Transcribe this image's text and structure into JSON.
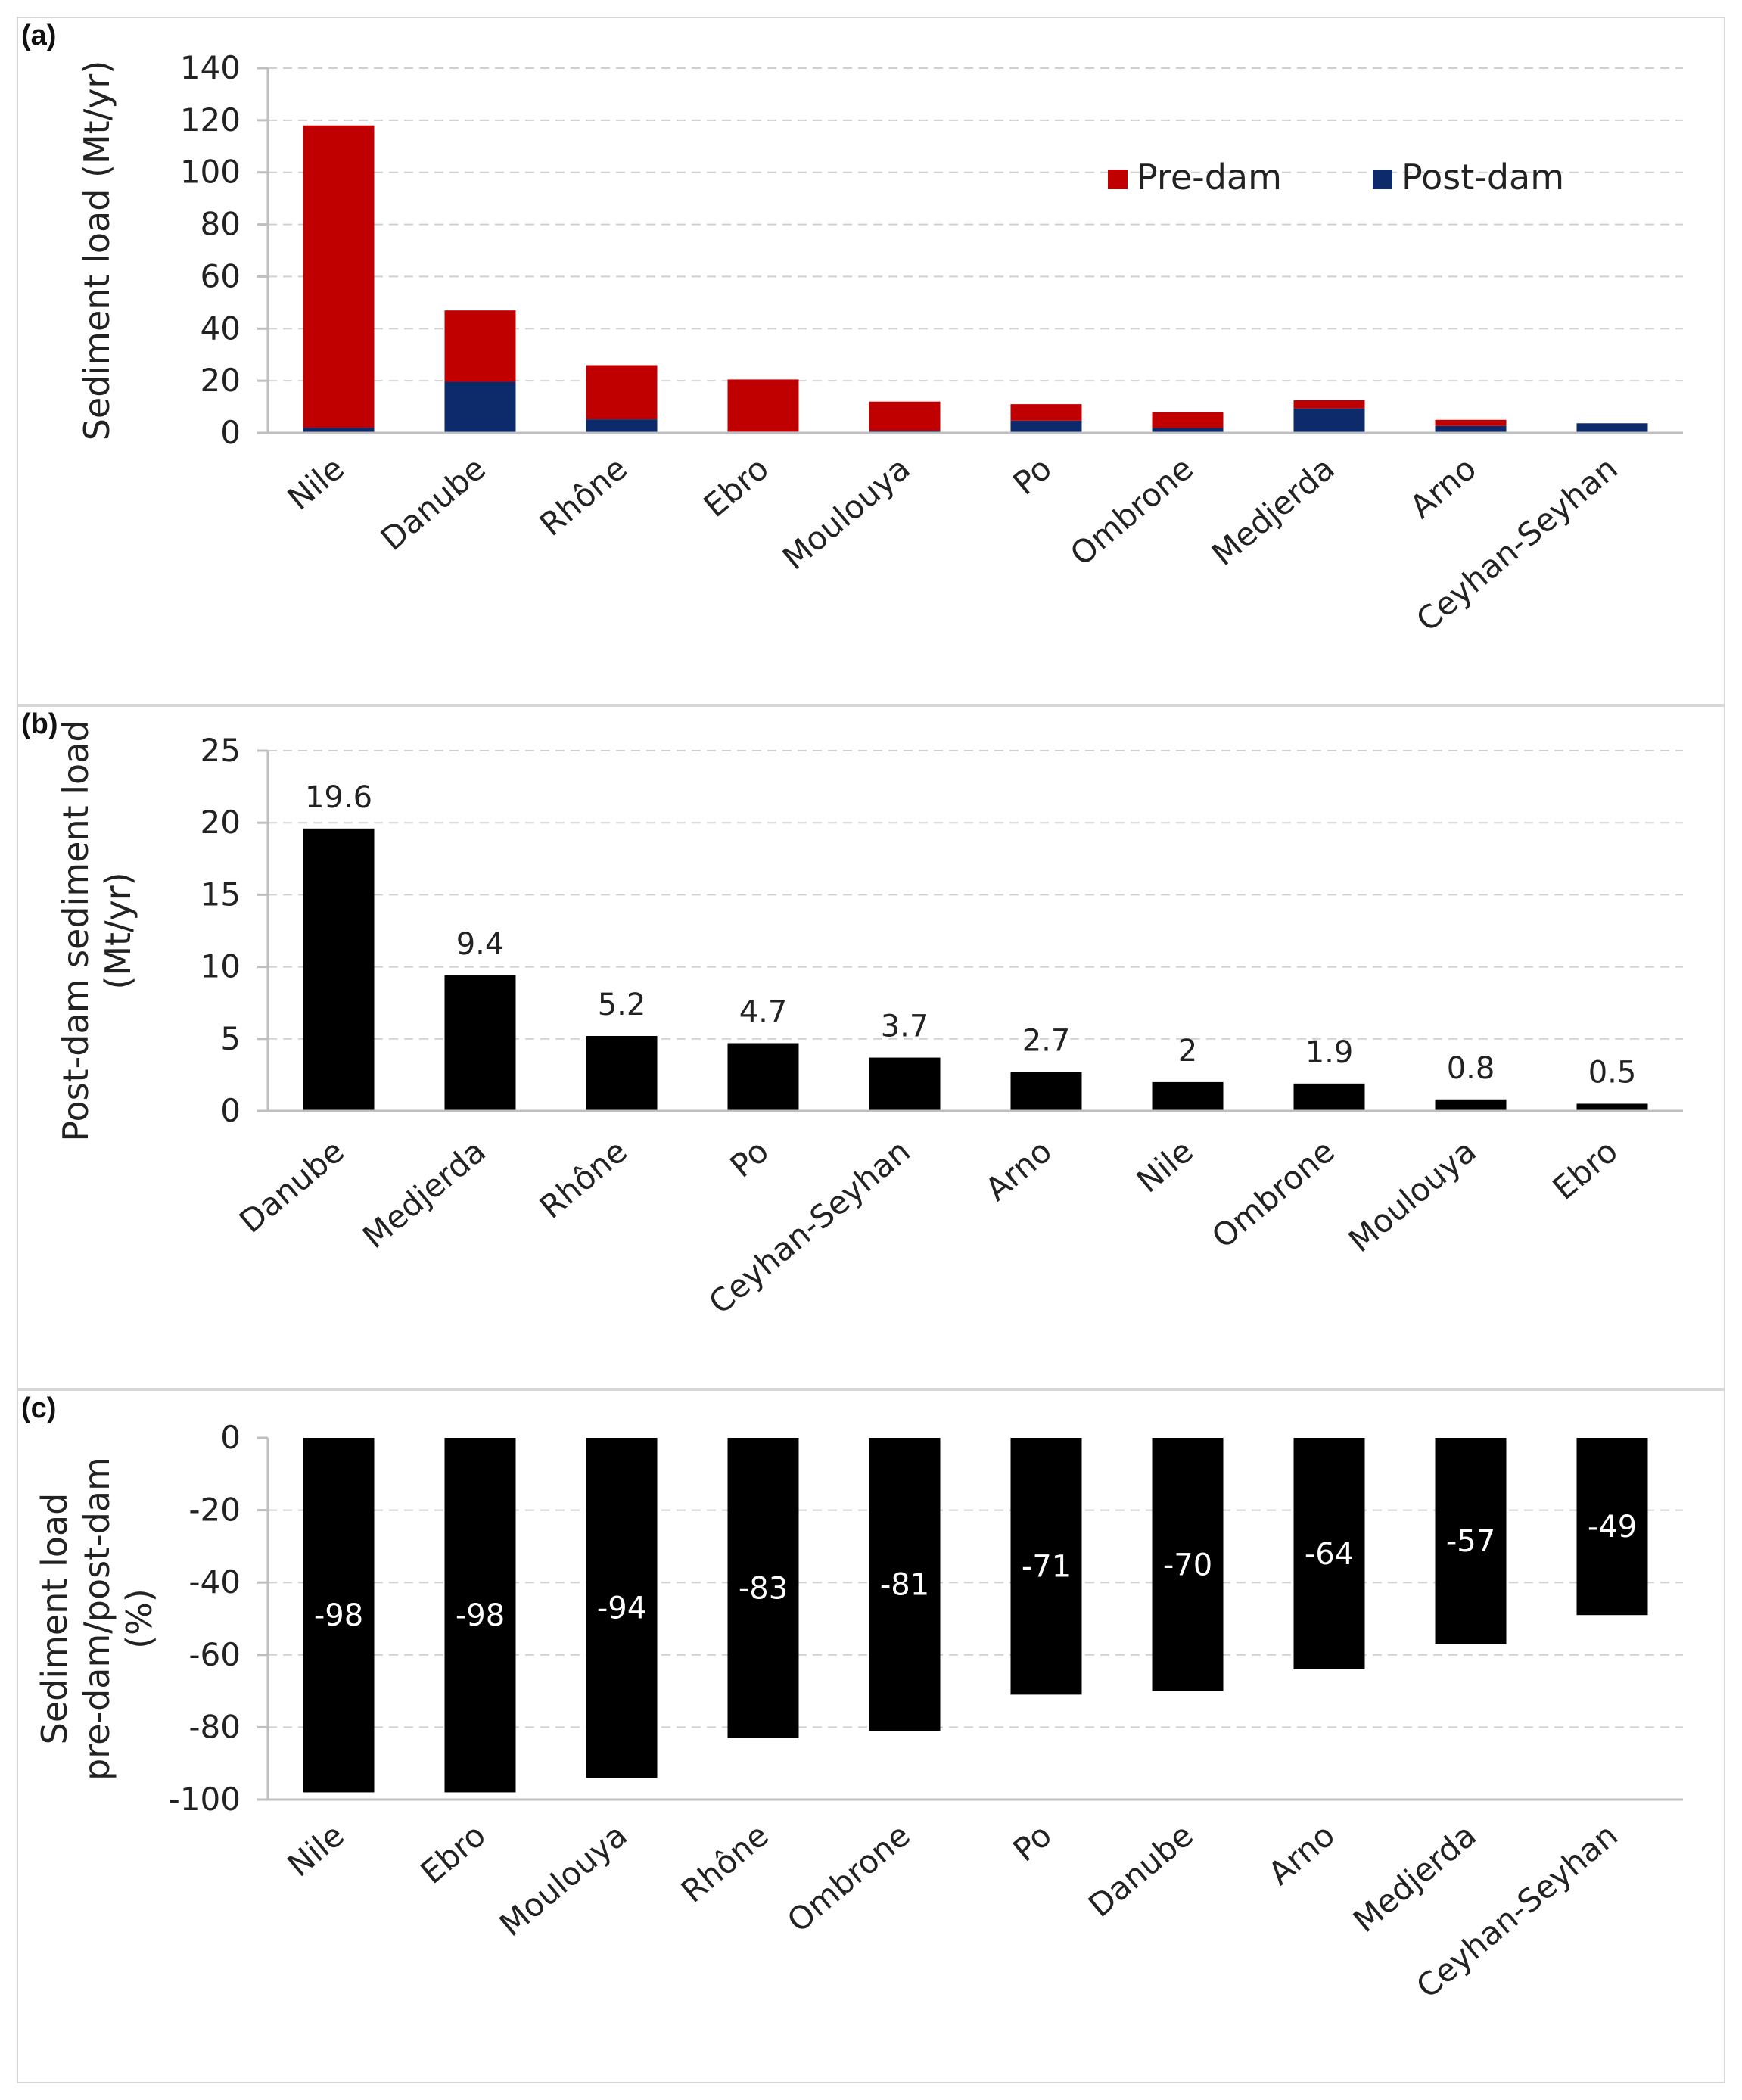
{
  "colors": {
    "pre_dam": "#c00000",
    "post_dam": "#0d2a6b",
    "bar": "#000000",
    "grid": "#d0d0d0",
    "axis": "#bfbfbf"
  },
  "chart_data": [
    {
      "panel_label": "(a)",
      "type": "bar",
      "stacked": true,
      "ylabel": "Sediment load (Mt/yr)",
      "ylim": [
        0,
        140
      ],
      "yticks": [
        0,
        20,
        40,
        60,
        80,
        100,
        120,
        140
      ],
      "categories": [
        "Nile",
        "Danube",
        "Rhône",
        "Ebro",
        "Moulouya",
        "Po",
        "Ombrone",
        "Medjerda",
        "Arno",
        "Ceyhan-Seyhan"
      ],
      "series": [
        {
          "name": "Post-dam",
          "color": "#0d2a6b",
          "values": [
            2,
            19.6,
            5.2,
            0.5,
            0.8,
            4.7,
            1.9,
            9.4,
            2.7,
            3.7
          ]
        },
        {
          "name": "Pre-dam",
          "color": "#c00000",
          "values": [
            116,
            27.4,
            20.8,
            20,
            11.2,
            6.3,
            6.1,
            3.1,
            2.3,
            0
          ]
        }
      ],
      "legend": {
        "position": "top-right",
        "entries": [
          "Pre-dam",
          "Post-dam"
        ]
      },
      "grid": true
    },
    {
      "panel_label": "(b)",
      "type": "bar",
      "ylabel": [
        "Post-dam sediment load",
        "(Mt/yr)"
      ],
      "ylim": [
        0,
        25
      ],
      "yticks": [
        0,
        5,
        10,
        15,
        20,
        25
      ],
      "categories": [
        "Danube",
        "Medjerda",
        "Rhône",
        "Po",
        "Ceyhan-Seyhan",
        "Arno",
        "Nile",
        "Ombrone",
        "Moulouya",
        "Ebro"
      ],
      "values": [
        19.6,
        9.4,
        5.2,
        4.7,
        3.7,
        2.7,
        2,
        1.9,
        0.8,
        0.5
      ],
      "data_labels": [
        "19.6",
        "9.4",
        "5.2",
        "4.7",
        "3.7",
        "2.7",
        "2",
        "1.9",
        "0.8",
        "0.5"
      ],
      "grid": true
    },
    {
      "panel_label": "(c)",
      "type": "bar",
      "ylabel": [
        "Sediment load",
        "pre-dam/post-dam",
        "(%)"
      ],
      "ylim": [
        -100,
        0
      ],
      "yticks": [
        0,
        -20,
        -40,
        -60,
        -80,
        -100
      ],
      "categories": [
        "Nile",
        "Ebro",
        "Moulouya",
        "Rhône",
        "Ombrone",
        "Po",
        "Danube",
        "Arno",
        "Medjerda",
        "Ceyhan-Seyhan"
      ],
      "values": [
        -98,
        -98,
        -94,
        -83,
        -81,
        -71,
        -70,
        -64,
        -57,
        -49
      ],
      "data_labels": [
        "-98",
        "-98",
        "-94",
        "-83",
        "-81",
        "-71",
        "-70",
        "-64",
        "-57",
        "-49"
      ],
      "grid": true
    }
  ]
}
